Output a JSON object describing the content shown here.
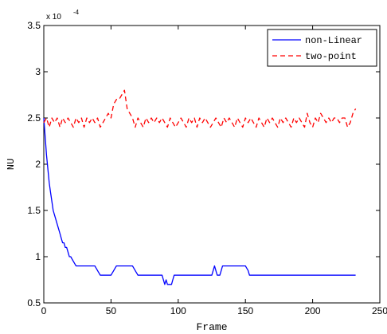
{
  "chart_data": {
    "type": "line",
    "xlabel": "Frame",
    "ylabel": "NU",
    "y_multiplier": "x 10",
    "y_exponent": "-4",
    "xlim": [
      0,
      250
    ],
    "ylim": [
      0.5,
      3.5
    ],
    "x_ticks": [
      0,
      50,
      100,
      150,
      200,
      250
    ],
    "y_ticks": [
      0.5,
      1,
      1.5,
      2,
      2.5,
      3,
      3.5
    ],
    "x_tick_labels": [
      "0",
      "50",
      "100",
      "150",
      "200",
      "250"
    ],
    "y_tick_labels": [
      "0.5",
      "1",
      "1.5",
      "2",
      "2.5",
      "3",
      "3.5"
    ],
    "grid": false,
    "legend_position": "top-right",
    "series": [
      {
        "name": "non-Linear",
        "color": "#0000ff",
        "dash": "solid",
        "x": [
          0,
          1,
          2,
          3,
          4,
          5,
          6,
          7,
          8,
          9,
          10,
          11,
          12,
          13,
          14,
          15,
          16,
          17,
          18,
          19,
          20,
          22,
          24,
          26,
          28,
          30,
          32,
          34,
          36,
          38,
          40,
          42,
          44,
          46,
          48,
          50,
          52,
          54,
          56,
          58,
          60,
          62,
          64,
          66,
          68,
          70,
          72,
          74,
          76,
          78,
          80,
          82,
          84,
          86,
          88,
          89,
          90,
          91,
          92,
          93,
          94,
          95,
          96,
          97,
          98,
          100,
          105,
          110,
          115,
          120,
          125,
          126,
          127,
          128,
          129,
          130,
          131,
          132,
          133,
          134,
          135,
          136,
          138,
          140,
          145,
          150,
          152,
          153,
          154,
          160,
          170,
          180,
          190,
          200,
          210,
          220,
          230,
          232
        ],
        "y": [
          2.5,
          2.3,
          2.1,
          1.95,
          1.8,
          1.7,
          1.6,
          1.5,
          1.45,
          1.4,
          1.35,
          1.3,
          1.25,
          1.2,
          1.15,
          1.15,
          1.1,
          1.1,
          1.05,
          1.0,
          1.0,
          0.95,
          0.9,
          0.9,
          0.9,
          0.9,
          0.9,
          0.9,
          0.9,
          0.9,
          0.85,
          0.8,
          0.8,
          0.8,
          0.8,
          0.8,
          0.85,
          0.9,
          0.9,
          0.9,
          0.9,
          0.9,
          0.9,
          0.9,
          0.85,
          0.8,
          0.8,
          0.8,
          0.8,
          0.8,
          0.8,
          0.8,
          0.8,
          0.8,
          0.8,
          0.75,
          0.7,
          0.75,
          0.7,
          0.7,
          0.7,
          0.7,
          0.75,
          0.8,
          0.8,
          0.8,
          0.8,
          0.8,
          0.8,
          0.8,
          0.8,
          0.85,
          0.9,
          0.85,
          0.8,
          0.8,
          0.8,
          0.85,
          0.9,
          0.9,
          0.9,
          0.9,
          0.9,
          0.9,
          0.9,
          0.9,
          0.85,
          0.8,
          0.8,
          0.8,
          0.8,
          0.8,
          0.8,
          0.8,
          0.8,
          0.8,
          0.8,
          0.8
        ]
      },
      {
        "name": "two-point",
        "color": "#ff0000",
        "dash": "dashed",
        "x": [
          0,
          2,
          4,
          6,
          8,
          10,
          12,
          14,
          16,
          18,
          20,
          22,
          24,
          26,
          28,
          30,
          32,
          34,
          36,
          38,
          40,
          42,
          44,
          46,
          48,
          50,
          52,
          54,
          56,
          58,
          60,
          61,
          62,
          64,
          66,
          68,
          70,
          72,
          74,
          76,
          78,
          80,
          82,
          84,
          86,
          88,
          90,
          92,
          94,
          96,
          98,
          100,
          102,
          104,
          106,
          108,
          110,
          112,
          114,
          116,
          118,
          120,
          122,
          124,
          126,
          128,
          130,
          132,
          134,
          136,
          138,
          140,
          142,
          144,
          146,
          148,
          150,
          152,
          154,
          156,
          158,
          160,
          162,
          164,
          166,
          168,
          170,
          172,
          174,
          176,
          178,
          180,
          182,
          184,
          186,
          188,
          190,
          192,
          194,
          196,
          198,
          200,
          202,
          204,
          206,
          208,
          210,
          212,
          214,
          216,
          218,
          220,
          222,
          224,
          226,
          228,
          230,
          232
        ],
        "y": [
          2.45,
          2.5,
          2.4,
          2.5,
          2.45,
          2.5,
          2.4,
          2.5,
          2.45,
          2.5,
          2.45,
          2.4,
          2.5,
          2.45,
          2.5,
          2.4,
          2.5,
          2.45,
          2.5,
          2.45,
          2.5,
          2.4,
          2.45,
          2.5,
          2.55,
          2.5,
          2.65,
          2.7,
          2.7,
          2.75,
          2.8,
          2.7,
          2.6,
          2.55,
          2.5,
          2.4,
          2.5,
          2.45,
          2.4,
          2.5,
          2.45,
          2.5,
          2.45,
          2.5,
          2.45,
          2.5,
          2.45,
          2.4,
          2.5,
          2.45,
          2.4,
          2.45,
          2.5,
          2.45,
          2.4,
          2.5,
          2.45,
          2.5,
          2.4,
          2.5,
          2.45,
          2.5,
          2.45,
          2.4,
          2.45,
          2.5,
          2.45,
          2.4,
          2.5,
          2.45,
          2.5,
          2.45,
          2.4,
          2.5,
          2.45,
          2.4,
          2.5,
          2.45,
          2.5,
          2.45,
          2.4,
          2.5,
          2.45,
          2.4,
          2.5,
          2.45,
          2.5,
          2.45,
          2.4,
          2.5,
          2.45,
          2.5,
          2.45,
          2.4,
          2.5,
          2.45,
          2.5,
          2.45,
          2.4,
          2.55,
          2.45,
          2.4,
          2.5,
          2.45,
          2.55,
          2.5,
          2.45,
          2.5,
          2.45,
          2.5,
          2.5,
          2.45,
          2.5,
          2.5,
          2.4,
          2.45,
          2.55,
          2.6
        ]
      }
    ]
  }
}
